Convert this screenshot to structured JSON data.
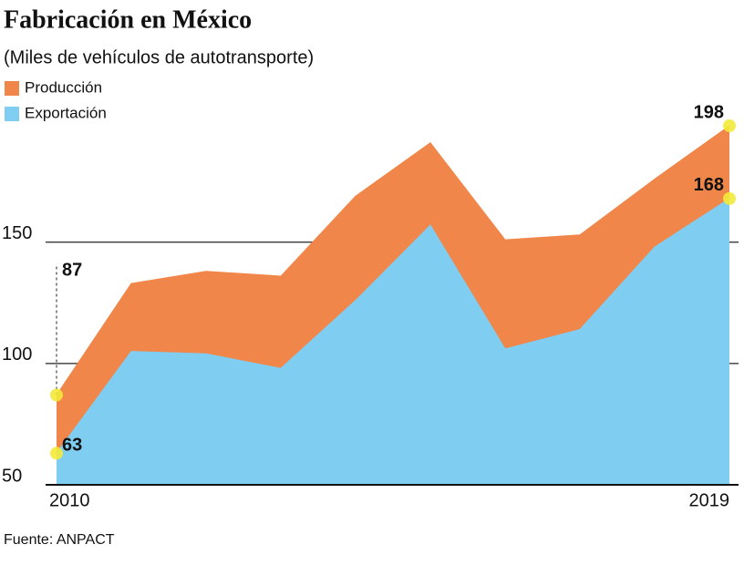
{
  "chart_data": {
    "type": "area",
    "title": "Fabricación en México",
    "subtitle": "(Miles de vehículos de autotransporte)",
    "source": "Fuente: ANPACT",
    "x": [
      2010,
      2011,
      2012,
      2013,
      2014,
      2015,
      2016,
      2017,
      2018,
      2019
    ],
    "xlim": [
      2010,
      2019
    ],
    "xticks": [
      2010,
      2019
    ],
    "ylim": [
      50,
      198
    ],
    "yticks": [
      50,
      100,
      150
    ],
    "grid": true,
    "legend": "top-left",
    "series": [
      {
        "name": "Producción",
        "color": "#f0864a",
        "values": [
          87,
          133,
          138,
          136,
          169,
          191,
          151,
          153,
          176,
          198
        ]
      },
      {
        "name": "Exportación",
        "color": "#80cdf2",
        "values": [
          63,
          105,
          104,
          98,
          126,
          157,
          106,
          114,
          148,
          168
        ]
      }
    ]
  }
}
